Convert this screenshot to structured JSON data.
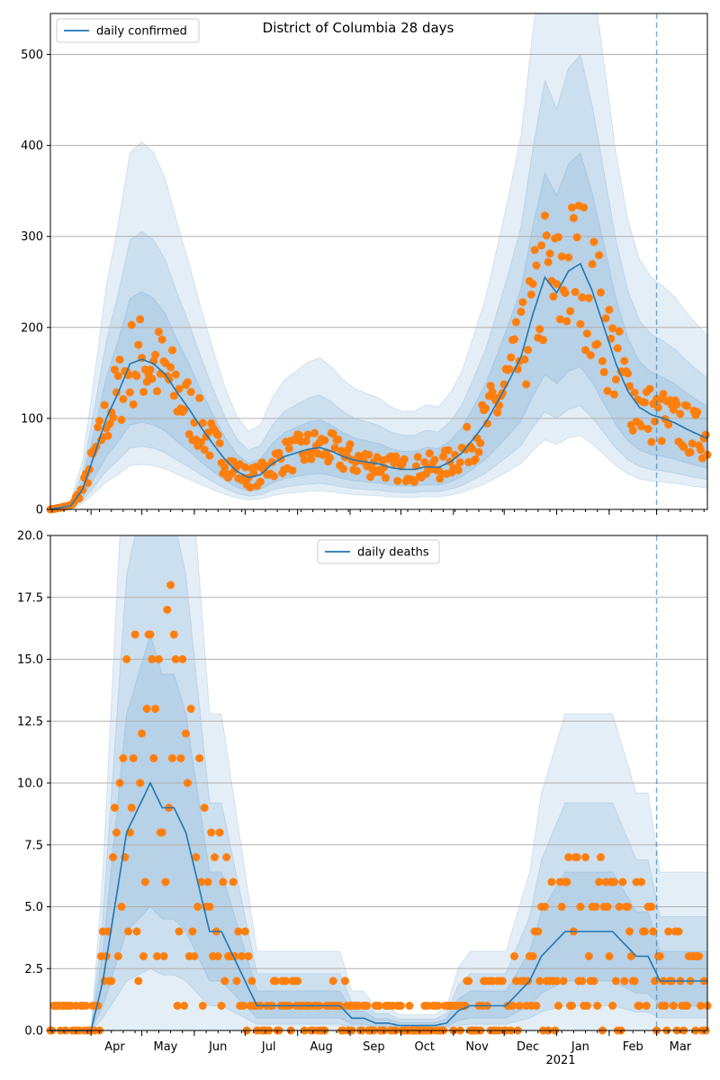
{
  "figure": {
    "title": "District of Columbia 28 days",
    "year_label": "2021"
  },
  "colors": {
    "line": "#1f77b4",
    "dots": "#ff7f0e",
    "band": "#1f77b4",
    "grid": "#b0b0b0",
    "vline": "#1f77b4"
  },
  "chart_data": [
    {
      "type": "line",
      "name": "confirmed-panel",
      "legend": "daily confirmed",
      "legend_position": "upper left",
      "x_range": [
        "2020-03-08",
        "2021-03-31"
      ],
      "x_ticks": [
        "Apr",
        "May",
        "Jun",
        "Jul",
        "Aug",
        "Sep",
        "Oct",
        "Nov",
        "Dec",
        "Jan",
        "Feb",
        "Mar"
      ],
      "ylim": [
        0,
        545
      ],
      "y_ticks": [
        "0",
        "100",
        "200",
        "300",
        "400",
        "500"
      ],
      "grid": "horizontal",
      "vertical_marker_date": "2021-03-01",
      "line_points": [
        [
          "2020-03-08",
          0
        ],
        [
          "2020-03-20",
          4
        ],
        [
          "2020-03-27",
          22
        ],
        [
          "2020-04-03",
          60
        ],
        [
          "2020-04-10",
          100
        ],
        [
          "2020-04-17",
          128
        ],
        [
          "2020-04-24",
          160
        ],
        [
          "2020-05-01",
          165
        ],
        [
          "2020-05-08",
          160
        ],
        [
          "2020-05-15",
          148
        ],
        [
          "2020-05-22",
          128
        ],
        [
          "2020-05-29",
          110
        ],
        [
          "2020-06-05",
          90
        ],
        [
          "2020-06-12",
          72
        ],
        [
          "2020-06-19",
          55
        ],
        [
          "2020-06-26",
          42
        ],
        [
          "2020-07-03",
          35
        ],
        [
          "2020-07-10",
          38
        ],
        [
          "2020-07-17",
          50
        ],
        [
          "2020-07-24",
          58
        ],
        [
          "2020-07-31",
          62
        ],
        [
          "2020-08-07",
          66
        ],
        [
          "2020-08-14",
          68
        ],
        [
          "2020-08-21",
          64
        ],
        [
          "2020-08-28",
          58
        ],
        [
          "2020-09-04",
          54
        ],
        [
          "2020-09-11",
          52
        ],
        [
          "2020-09-18",
          50
        ],
        [
          "2020-09-25",
          46
        ],
        [
          "2020-10-02",
          44
        ],
        [
          "2020-10-09",
          44
        ],
        [
          "2020-10-16",
          47
        ],
        [
          "2020-10-23",
          46
        ],
        [
          "2020-10-30",
          52
        ],
        [
          "2020-11-06",
          62
        ],
        [
          "2020-11-13",
          78
        ],
        [
          "2020-11-20",
          95
        ],
        [
          "2020-11-27",
          118
        ],
        [
          "2020-12-04",
          142
        ],
        [
          "2020-12-11",
          168
        ],
        [
          "2020-12-18",
          215
        ],
        [
          "2020-12-25",
          255
        ],
        [
          "2021-01-01",
          238
        ],
        [
          "2021-01-08",
          262
        ],
        [
          "2021-01-15",
          270
        ],
        [
          "2021-01-22",
          240
        ],
        [
          "2021-01-29",
          200
        ],
        [
          "2021-02-05",
          160
        ],
        [
          "2021-02-12",
          130
        ],
        [
          "2021-02-19",
          112
        ],
        [
          "2021-02-26",
          104
        ],
        [
          "2021-03-05",
          100
        ],
        [
          "2021-03-12",
          95
        ],
        [
          "2021-03-19",
          88
        ],
        [
          "2021-03-26",
          82
        ],
        [
          "2021-03-31",
          78
        ]
      ],
      "bands": [
        {
          "factor_lo": 0.58,
          "factor_hi": 1.45
        },
        {
          "factor_lo": 0.42,
          "factor_hi": 1.85
        },
        {
          "factor_lo": 0.3,
          "factor_hi": 2.45
        }
      ],
      "dot_seed": 7,
      "dot_spread": 0.32
    },
    {
      "type": "line",
      "name": "deaths-panel",
      "legend": "daily deaths",
      "legend_position": "upper center",
      "x_range": [
        "2020-03-08",
        "2021-03-31"
      ],
      "x_ticks": [
        "Apr",
        "May",
        "Jun",
        "Jul",
        "Aug",
        "Sep",
        "Oct",
        "Nov",
        "Dec",
        "Jan",
        "Feb",
        "Mar"
      ],
      "ylim": [
        0,
        20
      ],
      "y_ticks": [
        "0.0",
        "2.5",
        "5.0",
        "7.5",
        "10.0",
        "12.5",
        "15.0",
        "17.5",
        "20.0"
      ],
      "grid": "horizontal",
      "vertical_marker_date": "2021-03-01",
      "line_points": [
        [
          "2020-03-08",
          0
        ],
        [
          "2020-04-01",
          0
        ],
        [
          "2020-04-08",
          2
        ],
        [
          "2020-04-15",
          5
        ],
        [
          "2020-04-22",
          8
        ],
        [
          "2020-04-29",
          9
        ],
        [
          "2020-05-06",
          10
        ],
        [
          "2020-05-13",
          9
        ],
        [
          "2020-05-20",
          9
        ],
        [
          "2020-05-27",
          8
        ],
        [
          "2020-06-03",
          6
        ],
        [
          "2020-06-10",
          4
        ],
        [
          "2020-06-17",
          4
        ],
        [
          "2020-06-24",
          3
        ],
        [
          "2020-07-01",
          2
        ],
        [
          "2020-07-08",
          1
        ],
        [
          "2020-07-15",
          1
        ],
        [
          "2020-07-22",
          1
        ],
        [
          "2020-07-29",
          1
        ],
        [
          "2020-08-05",
          1
        ],
        [
          "2020-08-12",
          1
        ],
        [
          "2020-08-19",
          1
        ],
        [
          "2020-08-26",
          1
        ],
        [
          "2020-09-02",
          0.5
        ],
        [
          "2020-09-09",
          0.5
        ],
        [
          "2020-09-16",
          0.3
        ],
        [
          "2020-09-23",
          0.3
        ],
        [
          "2020-09-30",
          0.2
        ],
        [
          "2020-10-07",
          0.2
        ],
        [
          "2020-10-14",
          0.2
        ],
        [
          "2020-10-21",
          0.2
        ],
        [
          "2020-10-28",
          0.3
        ],
        [
          "2020-11-04",
          0.8
        ],
        [
          "2020-11-11",
          1
        ],
        [
          "2020-11-18",
          1
        ],
        [
          "2020-11-25",
          1
        ],
        [
          "2020-12-02",
          1
        ],
        [
          "2020-12-09",
          1.5
        ],
        [
          "2020-12-16",
          2
        ],
        [
          "2020-12-23",
          3
        ],
        [
          "2020-12-30",
          3.5
        ],
        [
          "2021-01-06",
          4
        ],
        [
          "2021-01-13",
          4
        ],
        [
          "2021-01-20",
          4
        ],
        [
          "2021-01-27",
          4
        ],
        [
          "2021-02-03",
          4
        ],
        [
          "2021-02-10",
          3.5
        ],
        [
          "2021-02-17",
          3
        ],
        [
          "2021-02-24",
          3
        ],
        [
          "2021-03-03",
          2
        ],
        [
          "2021-03-10",
          2
        ],
        [
          "2021-03-17",
          2
        ],
        [
          "2021-03-24",
          2
        ],
        [
          "2021-03-31",
          2
        ]
      ],
      "bands": [
        {
          "factor_lo": 0.5,
          "factor_hi": 1.6
        },
        {
          "factor_lo": 0.25,
          "factor_hi": 2.3
        },
        {
          "factor_lo": 0.0,
          "factor_hi": 3.2
        }
      ],
      "dot_seed": 13,
      "dot_spread": 0.6
    }
  ]
}
